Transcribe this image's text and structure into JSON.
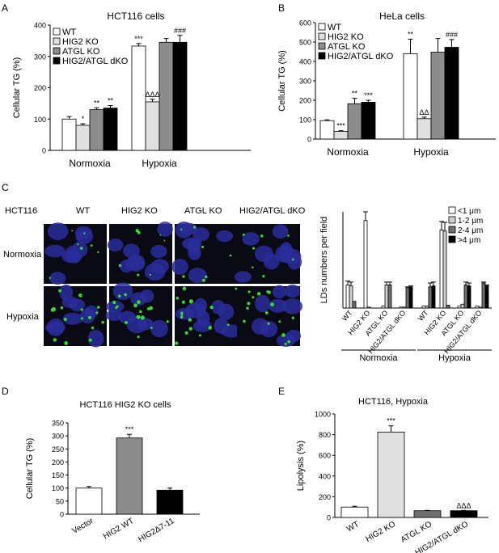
{
  "panel_labels": [
    "A",
    "B",
    "C",
    "D",
    "E"
  ],
  "chart_data": [
    {
      "id": "A",
      "type": "bar",
      "title": "HCT116 cells",
      "ylabel": "Cellular TG (%)",
      "ylim": [
        0,
        400
      ],
      "yticks": [
        0,
        100,
        200,
        300,
        400
      ],
      "groups": [
        "Normoxia",
        "Hypoxia"
      ],
      "series": [
        {
          "name": "WT",
          "fill": "#ffffff",
          "values": [
            100,
            333
          ],
          "errors": [
            8,
            8
          ],
          "marks": [
            "",
            "***"
          ]
        },
        {
          "name": "HIG2 KO",
          "fill": "#e0e0e0",
          "values": [
            80,
            155
          ],
          "errors": [
            5,
            8
          ],
          "marks": [
            "*",
            "ΔΔΔ"
          ]
        },
        {
          "name": "ATGL KO",
          "fill": "#8c8c8c",
          "values": [
            130,
            345
          ],
          "errors": [
            6,
            12
          ],
          "marks": [
            "**",
            ""
          ]
        },
        {
          "name": "HIG2/ATGL dKO",
          "fill": "#000000",
          "values": [
            135,
            345
          ],
          "errors": [
            8,
            22
          ],
          "marks": [
            "**",
            "###"
          ]
        }
      ],
      "legend": "top-left"
    },
    {
      "id": "B",
      "type": "bar",
      "title": "HeLa cells",
      "ylabel": "Cellular TG (%)",
      "ylim": [
        0,
        600
      ],
      "yticks": [
        0,
        100,
        200,
        300,
        400,
        500,
        600
      ],
      "groups": [
        "Normoxia",
        "Hypoxia"
      ],
      "series": [
        {
          "name": "WT",
          "fill": "#ffffff",
          "values": [
            95,
            440
          ],
          "errors": [
            4,
            75
          ],
          "marks": [
            "",
            "**"
          ]
        },
        {
          "name": "HIG2 KO",
          "fill": "#e0e0e0",
          "values": [
            40,
            105
          ],
          "errors": [
            3,
            8
          ],
          "marks": [
            "***",
            "ΔΔ"
          ]
        },
        {
          "name": "ATGL KO",
          "fill": "#8c8c8c",
          "values": [
            182,
            448
          ],
          "errors": [
            28,
            70
          ],
          "marks": [
            "**",
            ""
          ]
        },
        {
          "name": "HIG2/ATGL dKO",
          "fill": "#000000",
          "values": [
            190,
            473
          ],
          "errors": [
            10,
            40
          ],
          "marks": [
            "***",
            "###"
          ]
        }
      ],
      "legend": "top-left"
    },
    {
      "id": "C",
      "type": "bar",
      "ylabel": "LDs numbers per field",
      "ylim": [
        0,
        100
      ],
      "conditions": [
        "Normoxia",
        "Hypoxia"
      ],
      "categories": [
        "WT",
        "HIG2 KO",
        "ATGL KO",
        "HIG2/ATGL dKO"
      ],
      "series": [
        {
          "name": "<1  μm",
          "fill": "#ffffff",
          "values": [
            [
              24,
              91,
              2,
              1
            ],
            [
              2,
              81,
              2,
              2
            ]
          ]
        },
        {
          "name": "1-2  μm",
          "fill": "#d0d0d0",
          "values": [
            [
              23,
              1,
              24,
              1
            ],
            [
              2,
              80,
              4,
              1
            ]
          ]
        },
        {
          "name": "2-4  μm",
          "fill": "#707070",
          "values": [
            [
              7,
              0,
              24,
              21
            ],
            [
              22,
              3,
              24,
              26
            ]
          ]
        },
        {
          "name": ">4  μm",
          "fill": "#000000",
          "values": [
            [
              0,
              0,
              0,
              22
            ],
            [
              23,
              0,
              23,
              23
            ]
          ]
        }
      ],
      "errors": [
        4,
        9,
        3,
        1
      ],
      "legend": "top-right"
    },
    {
      "id": "D",
      "type": "bar",
      "title": "HCT116 HIG2 KO cells",
      "ylabel": "Cellular TG (%)",
      "ylim": [
        0,
        350
      ],
      "yticks": [
        0,
        50,
        100,
        150,
        200,
        250,
        300,
        350
      ],
      "categories": [
        "Vector",
        "HIG2 WT",
        "HIG2Δ7-11"
      ],
      "fills": [
        "#ffffff",
        "#8c8c8c",
        "#000000"
      ],
      "values": [
        100,
        292,
        92
      ],
      "errors": [
        6,
        14,
        8
      ],
      "marks": [
        "",
        "***",
        ""
      ]
    },
    {
      "id": "E",
      "type": "bar",
      "title": "HCT116, Hypoxia",
      "ylabel": "Lipolysis (%)",
      "ylim": [
        0,
        1000
      ],
      "yticks": [
        0,
        200,
        400,
        600,
        800,
        1000
      ],
      "categories": [
        "WT",
        "HIG2 KO",
        "ATGL KO",
        "HIG2/ATGL dKO"
      ],
      "fills": [
        "#ffffff",
        "#e0e0e0",
        "#707070",
        "#000000"
      ],
      "values": [
        100,
        825,
        65,
        65
      ],
      "errors": [
        8,
        60,
        3,
        3
      ],
      "marks": [
        "",
        "***",
        "",
        "ΔΔΔ"
      ]
    }
  ],
  "micrograph": {
    "cell_line": "HCT116",
    "columns": [
      "WT",
      "HIG2 KO",
      "ATGL KO",
      "HIG2/ATGL dKO"
    ],
    "rows": [
      "Normoxia",
      "Hypoxia"
    ],
    "nuclei_color": "#2a2d9a",
    "ld_color": "#33dd33",
    "background": "#0a0a14"
  }
}
